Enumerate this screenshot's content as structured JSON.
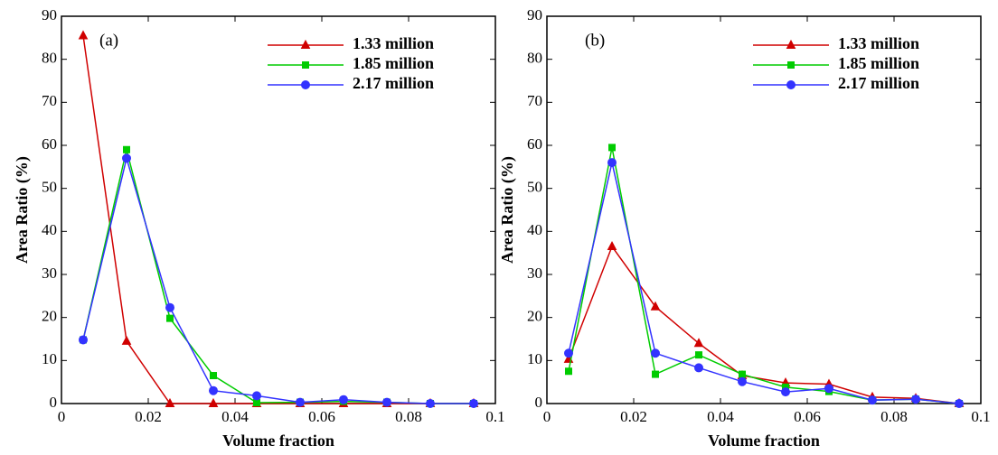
{
  "chart_data": [
    {
      "type": "line",
      "annotation": "(a)",
      "x_label": "Volume fraction",
      "y_label": "Area Ratio (%)",
      "x": [
        0.005,
        0.015,
        0.025,
        0.035,
        0.045,
        0.055,
        0.065,
        0.075,
        0.085,
        0.095
      ],
      "series": [
        {
          "name": "1.33 million",
          "color": "#d00000",
          "marker": "triangle",
          "values": [
            85.5,
            14.5,
            0,
            0,
            0,
            0,
            0,
            0,
            0,
            0
          ]
        },
        {
          "name": "1.85 million",
          "color": "#00cc00",
          "marker": "square",
          "values": [
            14.8,
            59,
            19.8,
            6.5,
            0.2,
            0.3,
            0.5,
            0.3,
            0,
            0
          ]
        },
        {
          "name": "2.17 million",
          "color": "#3333ff",
          "marker": "circle",
          "values": [
            14.8,
            57,
            22.3,
            3,
            1.8,
            0.3,
            0.9,
            0.3,
            0,
            0
          ]
        }
      ],
      "xlim": [
        0,
        0.1
      ],
      "xticks": [
        0,
        0.02,
        0.04,
        0.06,
        0.08,
        0.1
      ],
      "ylim": [
        0,
        90
      ],
      "yticks": [
        0,
        10,
        20,
        30,
        40,
        50,
        60,
        70,
        80,
        90
      ],
      "legend": "upper right"
    },
    {
      "type": "line",
      "annotation": "(b)",
      "x_label": "Volume fraction",
      "y_label": "Area Ratio (%)",
      "x": [
        0.005,
        0.015,
        0.025,
        0.035,
        0.045,
        0.055,
        0.065,
        0.075,
        0.085,
        0.095
      ],
      "series": [
        {
          "name": "1.33 million",
          "color": "#d00000",
          "marker": "triangle",
          "values": [
            10.3,
            36.5,
            22.5,
            14,
            6.5,
            4.8,
            4.5,
            1.5,
            1.2,
            0
          ]
        },
        {
          "name": "1.85 million",
          "color": "#00cc00",
          "marker": "square",
          "values": [
            7.5,
            59.5,
            6.8,
            11.3,
            6.8,
            3.8,
            2.8,
            0.8,
            1,
            0
          ]
        },
        {
          "name": "2.17 million",
          "color": "#3333ff",
          "marker": "circle",
          "values": [
            11.7,
            56,
            11.7,
            8.3,
            5.1,
            2.7,
            3.5,
            0.8,
            1,
            0
          ]
        }
      ],
      "xlim": [
        0,
        0.1
      ],
      "xticks": [
        0,
        0.02,
        0.04,
        0.06,
        0.08,
        0.1
      ],
      "ylim": [
        0,
        90
      ],
      "yticks": [
        0,
        10,
        20,
        30,
        40,
        50,
        60,
        70,
        80,
        90
      ],
      "legend": "upper right"
    }
  ]
}
